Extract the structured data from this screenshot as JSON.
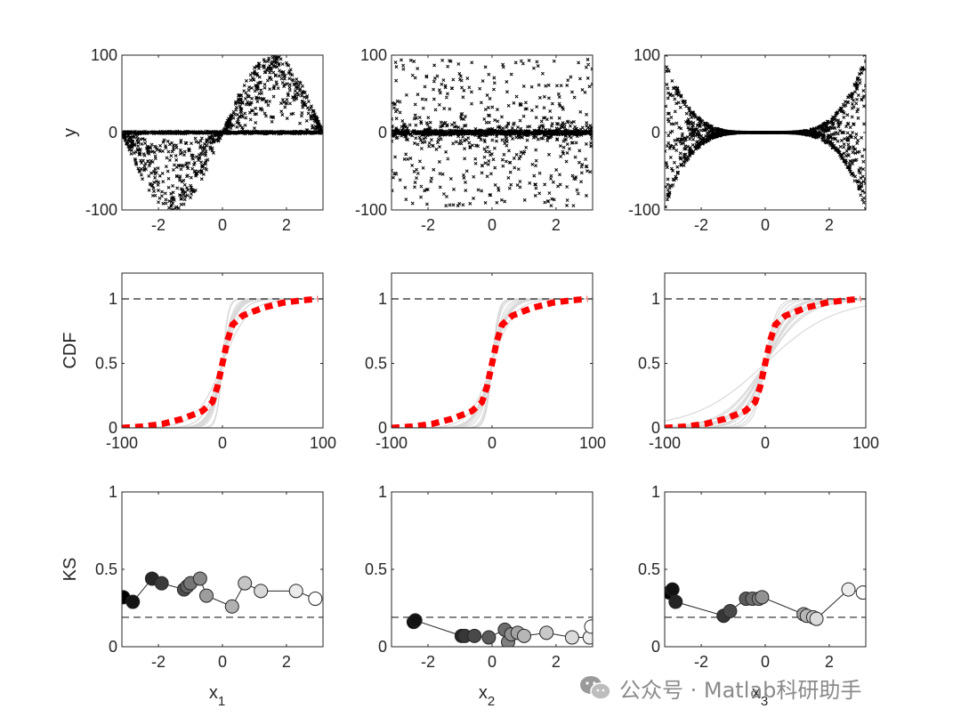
{
  "watermark": {
    "text": "公众号 · Matlab科研助手",
    "icon": "wechat-icon"
  },
  "colors": {
    "ink": "#262626",
    "scatter": "#000000",
    "cdf_ref": "#ff0000",
    "cdf_boot": "#d9d9d9",
    "dashed": "#262626"
  },
  "chart_data": [
    {
      "type": "scatter",
      "row": 1,
      "col": 1,
      "ylabel": "y",
      "xlabel": "",
      "xlim": [
        -3.1416,
        3.1416
      ],
      "ylim": [
        -100,
        100
      ],
      "xticks": [
        -2,
        0,
        2
      ],
      "yticks": [
        -100,
        0,
        100
      ],
      "marker": "x",
      "color": "#000000",
      "series": [
        {
          "x": [
            -3.0,
            -2.5,
            -2.0,
            -1.57,
            -1.0,
            -0.5,
            0.0,
            0.5,
            1.0,
            1.57,
            2.0,
            2.5,
            3.0
          ],
          "y": [
            -14,
            -60,
            -90,
            -100,
            -84,
            -48,
            0,
            48,
            84,
            100,
            90,
            60,
            14
          ]
        }
      ]
    },
    {
      "type": "scatter",
      "row": 1,
      "col": 2,
      "ylabel": "",
      "xlabel": "",
      "xlim": [
        -3.1416,
        3.1416
      ],
      "ylim": [
        -100,
        100
      ],
      "xticks": [
        -2,
        0,
        2
      ],
      "yticks": [
        -100,
        0,
        100
      ],
      "marker": "x",
      "color": "#000000",
      "series": [
        {
          "x": [
            -3.0,
            -2.0,
            -1.0,
            0.0,
            1.0,
            2.0,
            3.0
          ],
          "y": [
            0,
            0,
            0,
            0,
            0,
            0,
            0
          ]
        }
      ]
    },
    {
      "type": "scatter",
      "row": 1,
      "col": 3,
      "ylabel": "",
      "xlabel": "",
      "xlim": [
        -3.1416,
        3.1416
      ],
      "ylim": [
        -100,
        100
      ],
      "xticks": [
        -2,
        0,
        2
      ],
      "yticks": [
        -100,
        0,
        100
      ],
      "marker": "x",
      "color": "#000000",
      "series": [
        {
          "x": [
            -3.1,
            -2.5,
            -2.0,
            -1.5,
            -1.0,
            0.0,
            1.0,
            1.5,
            2.0,
            2.5,
            3.1
          ],
          "y": [
            100,
            40,
            13,
            4,
            1,
            0,
            1,
            4,
            13,
            40,
            100
          ]
        }
      ]
    },
    {
      "type": "line",
      "row": 2,
      "col": 1,
      "ylabel": "CDF",
      "xlabel": "",
      "xlim": [
        -100,
        100
      ],
      "ylim": [
        0,
        1.2
      ],
      "xticks": [
        -100,
        0,
        100
      ],
      "yticks": [
        0,
        0.5,
        1
      ],
      "refline": 1,
      "series": [
        {
          "name": "",
          "color": "#ff0000",
          "style": "dotted",
          "x": [
            -100,
            -80,
            -60,
            -40,
            -20,
            -10,
            -5,
            0,
            5,
            10,
            20,
            40,
            60,
            80,
            95
          ],
          "y": [
            0,
            0.01,
            0.03,
            0.07,
            0.13,
            0.2,
            0.32,
            0.5,
            0.68,
            0.8,
            0.87,
            0.93,
            0.97,
            0.99,
            1.0
          ]
        }
      ]
    },
    {
      "type": "line",
      "row": 2,
      "col": 2,
      "ylabel": "",
      "xlabel": "",
      "xlim": [
        -100,
        100
      ],
      "ylim": [
        0,
        1.2
      ],
      "xticks": [
        -100,
        0,
        100
      ],
      "yticks": [
        0,
        0.5,
        1
      ],
      "refline": 1,
      "series": [
        {
          "name": "",
          "color": "#ff0000",
          "style": "dotted",
          "x": [
            -100,
            -80,
            -60,
            -40,
            -20,
            -10,
            -5,
            0,
            5,
            10,
            20,
            40,
            60,
            80,
            95
          ],
          "y": [
            0,
            0.01,
            0.03,
            0.07,
            0.13,
            0.2,
            0.32,
            0.5,
            0.68,
            0.8,
            0.87,
            0.93,
            0.97,
            0.99,
            1.0
          ]
        }
      ]
    },
    {
      "type": "line",
      "row": 2,
      "col": 3,
      "ylabel": "",
      "xlabel": "",
      "xlim": [
        -100,
        100
      ],
      "ylim": [
        0,
        1.2
      ],
      "xticks": [
        -100,
        0,
        100
      ],
      "yticks": [
        0,
        0.5,
        1
      ],
      "refline": 1,
      "series": [
        {
          "name": "",
          "color": "#ff0000",
          "style": "dotted",
          "x": [
            -100,
            -80,
            -60,
            -40,
            -20,
            -10,
            -5,
            0,
            5,
            10,
            20,
            40,
            60,
            80,
            95
          ],
          "y": [
            0,
            0.01,
            0.03,
            0.07,
            0.13,
            0.2,
            0.32,
            0.5,
            0.68,
            0.8,
            0.87,
            0.93,
            0.97,
            0.99,
            1.0
          ]
        }
      ]
    },
    {
      "type": "line",
      "row": 3,
      "col": 1,
      "ylabel": "KS",
      "xlabel": "x",
      "xlabel_sub": "1",
      "xlim": [
        -3.1416,
        3.1416
      ],
      "ylim": [
        0,
        1
      ],
      "xticks": [
        -2,
        0,
        2
      ],
      "yticks": [
        0,
        0.5,
        1
      ],
      "refline": 0.19,
      "marker": "circle",
      "series": [
        {
          "x": [
            -3.1,
            -2.8,
            -2.2,
            -1.9,
            -1.2,
            -1.1,
            -1.0,
            -0.7,
            -0.5,
            0.3,
            0.7,
            1.2,
            2.3,
            2.9
          ],
          "y": [
            0.32,
            0.29,
            0.44,
            0.41,
            0.37,
            0.39,
            0.41,
            0.44,
            0.33,
            0.26,
            0.41,
            0.36,
            0.36,
            0.31
          ]
        }
      ]
    },
    {
      "type": "line",
      "row": 3,
      "col": 2,
      "ylabel": "",
      "xlabel": "x",
      "xlabel_sub": "2",
      "xlim": [
        -3.1416,
        3.1416
      ],
      "ylim": [
        0,
        1
      ],
      "xticks": [
        -2,
        0,
        2
      ],
      "yticks": [
        0,
        0.5,
        1
      ],
      "refline": 0.19,
      "marker": "circle",
      "series": [
        {
          "x": [
            -2.45,
            -2.4,
            -0.95,
            -0.85,
            -0.55,
            -0.1,
            0.4,
            0.5,
            0.6,
            0.8,
            1.0,
            1.7,
            2.5,
            3.05,
            3.1
          ],
          "y": [
            0.16,
            0.17,
            0.07,
            0.07,
            0.07,
            0.06,
            0.11,
            0.03,
            0.08,
            0.09,
            0.07,
            0.09,
            0.06,
            0.06,
            0.13
          ]
        }
      ]
    },
    {
      "type": "line",
      "row": 3,
      "col": 3,
      "ylabel": "",
      "xlabel": "x",
      "xlabel_sub": "3",
      "xlim": [
        -3.1416,
        3.1416
      ],
      "ylim": [
        0,
        1
      ],
      "xticks": [
        -2,
        0,
        2
      ],
      "yticks": [
        0,
        0.5,
        1
      ],
      "refline": 0.19,
      "marker": "circle",
      "series": [
        {
          "x": [
            -3.0,
            -2.9,
            -2.8,
            -1.3,
            -1.1,
            -0.6,
            -0.4,
            -0.2,
            -0.1,
            1.2,
            1.3,
            1.5,
            1.6,
            2.6,
            3.05
          ],
          "y": [
            0.35,
            0.37,
            0.29,
            0.2,
            0.23,
            0.31,
            0.31,
            0.31,
            0.32,
            0.21,
            0.2,
            0.19,
            0.18,
            0.37,
            0.35
          ]
        }
      ]
    }
  ]
}
